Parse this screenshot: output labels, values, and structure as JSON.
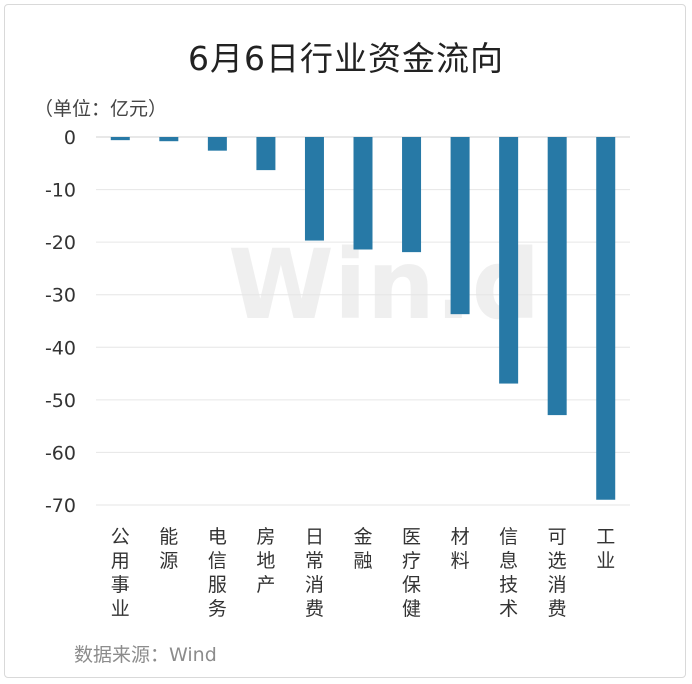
{
  "title": "6月6日行业资金流向",
  "unit_label": "（单位：亿元）",
  "source_label": "数据来源：Wind",
  "watermark": "Win.d",
  "chart_data": {
    "type": "bar",
    "title": "6月6日行业资金流向",
    "categories": [
      "公用事业",
      "能源",
      "电信服务",
      "房地产",
      "日常消费",
      "金融",
      "医疗保健",
      "材料",
      "信息技术",
      "可选消费",
      "工业"
    ],
    "values": [
      -0.6,
      -0.8,
      -2.6,
      -6.3,
      -19.7,
      -21.4,
      -21.9,
      -33.7,
      -46.9,
      -52.9,
      -69.0
    ],
    "ylim": [
      -70,
      0
    ],
    "yticks": [
      0,
      -10,
      -20,
      -30,
      -40,
      -50,
      -60,
      -70
    ],
    "ylabel": "",
    "xlabel": "",
    "grid": true,
    "legend": "none",
    "bar_color": "#2779a6",
    "grid_color": "#e6e6e6",
    "axis_color": "#d0d0d0"
  }
}
